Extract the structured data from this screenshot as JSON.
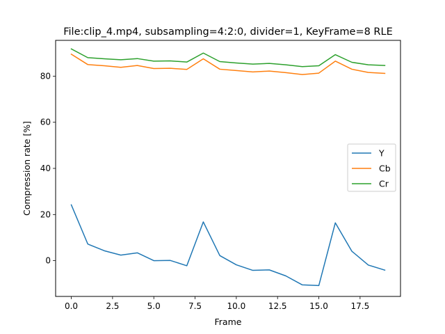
{
  "chart_data": {
    "type": "line",
    "title": "File:clip_4.mp4, subsampling=4:2:0, divider=1, KeyFrame=8 RLE",
    "xlabel": "Frame",
    "ylabel": "Compression rate [%]",
    "xlim": [
      -0.95,
      19.95
    ],
    "ylim": [
      -15.5,
      95.5
    ],
    "xticks": [
      0.0,
      2.5,
      5.0,
      7.5,
      10.0,
      12.5,
      15.0,
      17.5
    ],
    "xtick_labels": [
      "0.0",
      "2.5",
      "5.0",
      "7.5",
      "10.0",
      "12.5",
      "15.0",
      "17.5"
    ],
    "yticks": [
      0,
      20,
      40,
      60,
      80
    ],
    "ytick_labels": [
      "0",
      "20",
      "40",
      "60",
      "80"
    ],
    "grid": false,
    "legend_position": "center-right",
    "x": [
      0,
      1,
      2,
      3,
      4,
      5,
      6,
      7,
      8,
      9,
      10,
      11,
      12,
      13,
      14,
      15,
      16,
      17,
      18,
      19
    ],
    "series": [
      {
        "name": "Y",
        "color": "#1f77b4",
        "values": [
          24.2,
          7.2,
          4.3,
          2.4,
          3.4,
          0.0,
          0.1,
          -2.2,
          16.8,
          2.2,
          -1.8,
          -4.2,
          -4.0,
          -6.6,
          -10.5,
          -10.8,
          16.4,
          4.1,
          -1.9,
          -4.1
        ]
      },
      {
        "name": "Cb",
        "color": "#ff7f0e",
        "values": [
          89.5,
          85.0,
          84.5,
          83.8,
          84.6,
          83.3,
          83.4,
          82.9,
          87.5,
          83.0,
          82.4,
          81.8,
          82.2,
          81.5,
          80.7,
          81.3,
          86.5,
          83.0,
          81.6,
          81.2
        ]
      },
      {
        "name": "Cr",
        "color": "#2ca02c",
        "values": [
          91.8,
          88.0,
          87.5,
          87.1,
          87.6,
          86.5,
          86.6,
          86.1,
          90.0,
          86.3,
          85.7,
          85.2,
          85.5,
          84.9,
          84.1,
          84.5,
          89.3,
          86.0,
          84.9,
          84.6
        ]
      }
    ]
  }
}
